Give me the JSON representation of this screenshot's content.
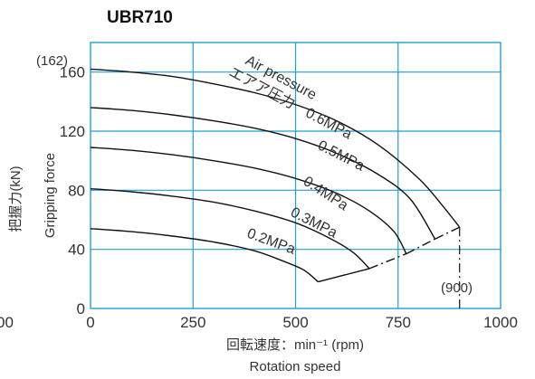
{
  "chart_data": {
    "type": "line",
    "title": "UBR710",
    "xlabel": "回転速度：min⁻¹ (rpm)",
    "xlabel_en": "Rotation speed",
    "ylabel": "把握力(kN)",
    "ylabel_en": "Gripping force",
    "xlim": [
      0,
      1000
    ],
    "ylim": [
      0,
      180
    ],
    "x_ticks": [
      "0",
      "250",
      "500",
      "750",
      "1000"
    ],
    "y_ticks": [
      "0",
      "40",
      "80",
      "120",
      "160"
    ],
    "x_tick_values": [
      0,
      250,
      500,
      750,
      1000
    ],
    "y_tick_values": [
      0,
      40,
      80,
      120,
      160
    ],
    "left_cut_tick": "00",
    "grid": true,
    "grid_color": "#1e9fd6",
    "line_color": "#111111",
    "ymax_note": "(162)",
    "ymax_note_value": 162,
    "xmax_note": "(900)",
    "xmax_note_value": 900,
    "legend_title": "Air pressure",
    "legend_title_ja": "エアア圧力",
    "series": [
      {
        "name": "0.6MPa",
        "values": [
          [
            0,
            162
          ],
          [
            100,
            160
          ],
          [
            200,
            157
          ],
          [
            300,
            152
          ],
          [
            400,
            146
          ],
          [
            500,
            138
          ],
          [
            600,
            127
          ],
          [
            700,
            111
          ],
          [
            800,
            88
          ],
          [
            860,
            69
          ],
          [
            900,
            55
          ]
        ]
      },
      {
        "name": "0.5MPa",
        "values": [
          [
            0,
            136
          ],
          [
            100,
            134
          ],
          [
            200,
            131
          ],
          [
            300,
            127
          ],
          [
            400,
            122
          ],
          [
            500,
            115
          ],
          [
            600,
            105
          ],
          [
            700,
            91
          ],
          [
            780,
            74
          ],
          [
            840,
            47
          ]
        ]
      },
      {
        "name": "0.4MPa",
        "values": [
          [
            0,
            109
          ],
          [
            100,
            107
          ],
          [
            200,
            104
          ],
          [
            300,
            100
          ],
          [
            400,
            95
          ],
          [
            500,
            88
          ],
          [
            600,
            78
          ],
          [
            680,
            66
          ],
          [
            740,
            52
          ],
          [
            770,
            37
          ]
        ]
      },
      {
        "name": "0.3MPa",
        "values": [
          [
            0,
            81
          ],
          [
            100,
            79
          ],
          [
            200,
            76
          ],
          [
            300,
            72
          ],
          [
            400,
            66
          ],
          [
            500,
            58
          ],
          [
            580,
            48
          ],
          [
            640,
            38
          ],
          [
            680,
            27
          ]
        ]
      },
      {
        "name": "0.2MPa",
        "values": [
          [
            0,
            54
          ],
          [
            100,
            52
          ],
          [
            200,
            49
          ],
          [
            300,
            45
          ],
          [
            400,
            39
          ],
          [
            470,
            32
          ],
          [
            520,
            26
          ],
          [
            555,
            18
          ]
        ]
      }
    ],
    "limit_line": [
      [
        555,
        18
      ],
      [
        680,
        27
      ],
      [
        770,
        37
      ],
      [
        840,
        47
      ],
      [
        900,
        55
      ]
    ],
    "limit_line_dashed_from_index": 1,
    "drop_line": {
      "x": 900,
      "from": 55,
      "to": 0
    }
  }
}
